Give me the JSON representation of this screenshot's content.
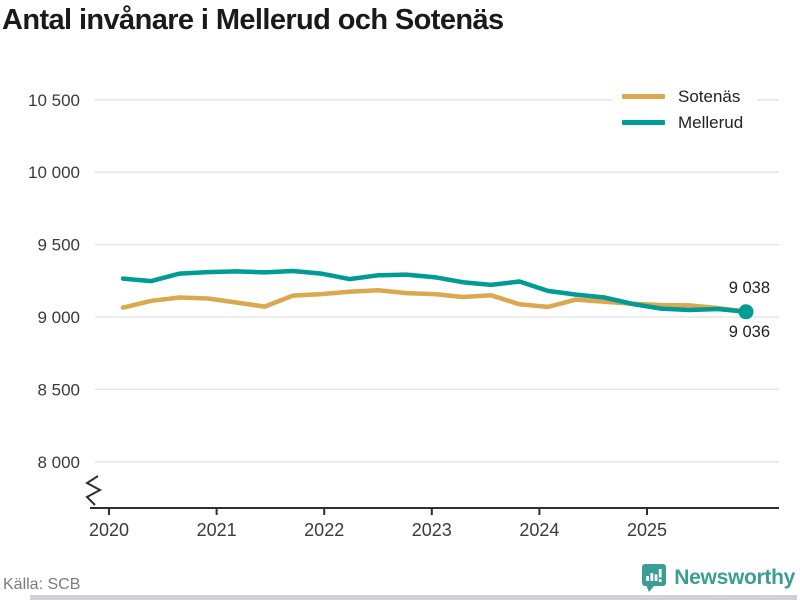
{
  "title": "Antal invånare i Mellerud och Sotenäs",
  "source": "Källa: SCB",
  "brand": "Newsworthy",
  "colors": {
    "sotenas": "#DBA84F",
    "mellerud": "#009B94",
    "grid": "#E2E2E2",
    "axis": "#2F2F2F",
    "tick_text": "#3B3B3B",
    "title_text": "#1A1A1A",
    "source_text": "#7B7B85",
    "brand_teal": "#3A9E95",
    "end_label_text": "#1F1F1F"
  },
  "legend": [
    {
      "label": "Sotenäs",
      "color": "#DBA84F"
    },
    {
      "label": "Mellerud",
      "color": "#009B94"
    }
  ],
  "chart_data": {
    "type": "line",
    "title": "Antal invånare i Mellerud och Sotenäs",
    "xlabel": "",
    "ylabel": "",
    "x_unit": "quarter",
    "x_start": "2020-Q1",
    "x_end": "2025-Q3",
    "x_tick_labels": [
      "2020",
      "2021",
      "2022",
      "2023",
      "2024",
      "2025"
    ],
    "y_tick_labels": [
      "10 500",
      "10 000",
      "9 500",
      "9 000",
      "8 500",
      "8 000"
    ],
    "y_tick_values": [
      10500,
      10000,
      9500,
      9000,
      8500,
      8000
    ],
    "ylim_shown": [
      7900,
      10700
    ],
    "axis_break": true,
    "grid": "horizontal",
    "legend_position": "top-right",
    "series": [
      {
        "name": "Sotenäs",
        "color": "#DBA84F",
        "end_value": 9038,
        "values": [
          9065,
          9112,
          9135,
          9128,
          9100,
          9072,
          9148,
          9158,
          9175,
          9185,
          9165,
          9158,
          9138,
          9150,
          9088,
          9070,
          9120,
          9105,
          9092,
          9082,
          9080,
          9062,
          9038
        ]
      },
      {
        "name": "Mellerud",
        "color": "#009B94",
        "end_value": 9036,
        "values": [
          9265,
          9248,
          9300,
          9310,
          9315,
          9308,
          9318,
          9300,
          9262,
          9288,
          9293,
          9275,
          9240,
          9222,
          9245,
          9180,
          9155,
          9135,
          9090,
          9058,
          9048,
          9055,
          9036
        ]
      }
    ],
    "end_labels": {
      "top": "9 038",
      "bottom": "9 036"
    }
  }
}
